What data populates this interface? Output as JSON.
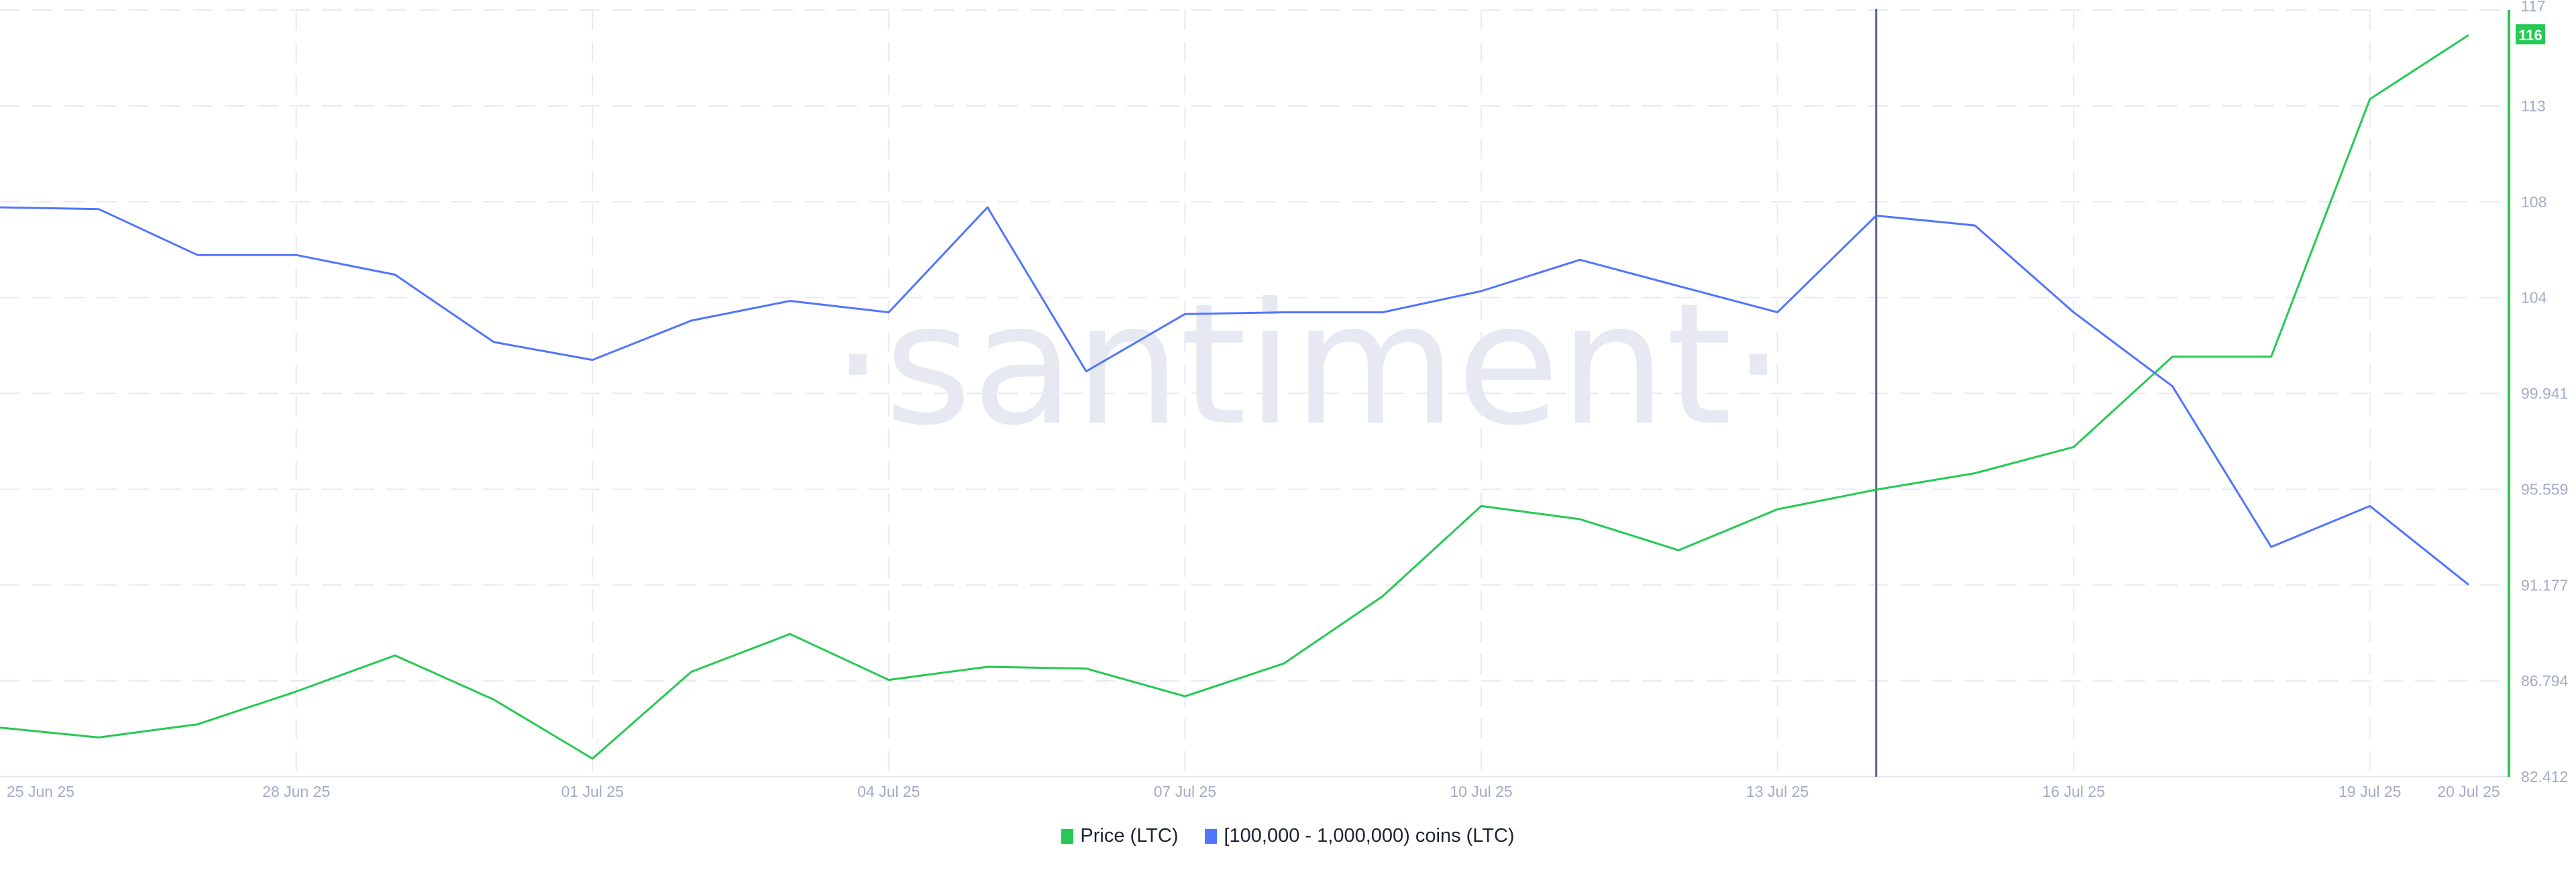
{
  "chart_data": {
    "type": "line",
    "title": "",
    "xlabel": "",
    "ylabel": "",
    "x": [
      "25 Jun 25",
      "26 Jun 25",
      "27 Jun 25",
      "28 Jun 25",
      "29 Jun 25",
      "30 Jun 25",
      "01 Jul 25",
      "02 Jul 25",
      "03 Jul 25",
      "04 Jul 25",
      "05 Jul 25",
      "06 Jul 25",
      "07 Jul 25",
      "08 Jul 25",
      "09 Jul 25",
      "10 Jul 25",
      "11 Jul 25",
      "12 Jul 25",
      "13 Jul 25",
      "14 Jul 25",
      "15 Jul 25",
      "16 Jul 25",
      "17 Jul 25",
      "18 Jul 25",
      "19 Jul 25",
      "20 Jul 25"
    ],
    "x_tick_labels": [
      "25 Jun 25",
      "28 Jun 25",
      "01 Jul 25",
      "04 Jul 25",
      "07 Jul 25",
      "10 Jul 25",
      "13 Jul 25",
      "16 Jul 25",
      "19 Jul 25",
      "20 Jul 25"
    ],
    "y_tick_labels": [
      "117",
      "113",
      "108",
      "104",
      "99.941",
      "95.559",
      "91.177",
      "86.794",
      "82.412"
    ],
    "ylim": [
      82.412,
      117.47
    ],
    "grid": true,
    "legend_position": "bottom",
    "watermark": "·santiment·",
    "last_value_label": "116",
    "crosshair_x": "14 Jul 25",
    "series": [
      {
        "name": "Price (LTC)",
        "color": "#26c953",
        "axis": "right",
        "values": [
          84.66,
          84.21,
          84.81,
          86.31,
          87.96,
          85.94,
          83.24,
          87.21,
          88.94,
          86.84,
          87.44,
          87.36,
          86.09,
          87.59,
          90.66,
          94.79,
          94.19,
          92.77,
          94.64,
          95.54,
          96.29,
          97.49,
          101.62,
          101.62,
          113.4,
          116.33
        ]
      },
      {
        "name": "[100,000  - 1,000,000) coins (LTC)",
        "color": "#5275ff",
        "axis": "hidden",
        "values": [
          108.45,
          108.37,
          106.27,
          106.27,
          105.37,
          102.29,
          101.47,
          103.27,
          104.17,
          103.65,
          108.45,
          100.95,
          103.57,
          103.65,
          103.65,
          104.62,
          106.05,
          104.85,
          103.65,
          108.07,
          107.62,
          103.65,
          100.27,
          92.92,
          94.79,
          91.19
        ]
      }
    ]
  }
}
